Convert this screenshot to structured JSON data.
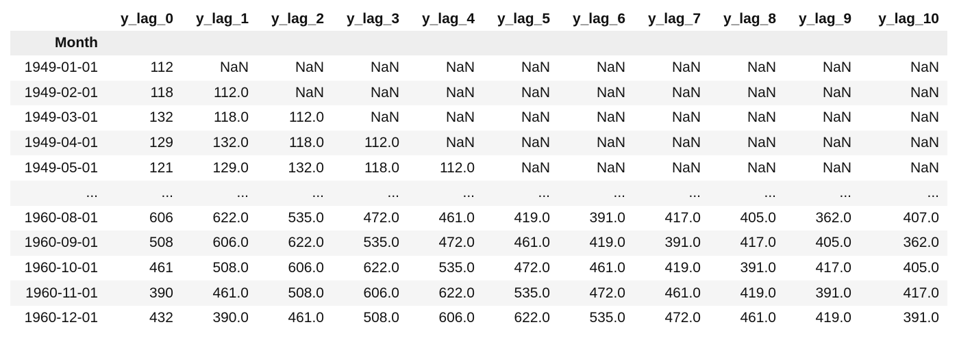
{
  "table": {
    "columns": [
      "y_lag_0",
      "y_lag_1",
      "y_lag_2",
      "y_lag_3",
      "y_lag_4",
      "y_lag_5",
      "y_lag_6",
      "y_lag_7",
      "y_lag_8",
      "y_lag_9",
      "y_lag_10"
    ],
    "index_name": "Month",
    "rows": [
      {
        "index": "1949-01-01",
        "cells": [
          "112",
          "NaN",
          "NaN",
          "NaN",
          "NaN",
          "NaN",
          "NaN",
          "NaN",
          "NaN",
          "NaN",
          "NaN"
        ]
      },
      {
        "index": "1949-02-01",
        "cells": [
          "118",
          "112.0",
          "NaN",
          "NaN",
          "NaN",
          "NaN",
          "NaN",
          "NaN",
          "NaN",
          "NaN",
          "NaN"
        ]
      },
      {
        "index": "1949-03-01",
        "cells": [
          "132",
          "118.0",
          "112.0",
          "NaN",
          "NaN",
          "NaN",
          "NaN",
          "NaN",
          "NaN",
          "NaN",
          "NaN"
        ]
      },
      {
        "index": "1949-04-01",
        "cells": [
          "129",
          "132.0",
          "118.0",
          "112.0",
          "NaN",
          "NaN",
          "NaN",
          "NaN",
          "NaN",
          "NaN",
          "NaN"
        ]
      },
      {
        "index": "1949-05-01",
        "cells": [
          "121",
          "129.0",
          "132.0",
          "118.0",
          "112.0",
          "NaN",
          "NaN",
          "NaN",
          "NaN",
          "NaN",
          "NaN"
        ]
      },
      {
        "index": "...",
        "cells": [
          "...",
          "...",
          "...",
          "...",
          "...",
          "...",
          "...",
          "...",
          "...",
          "...",
          "..."
        ]
      },
      {
        "index": "1960-08-01",
        "cells": [
          "606",
          "622.0",
          "535.0",
          "472.0",
          "461.0",
          "419.0",
          "391.0",
          "417.0",
          "405.0",
          "362.0",
          "407.0"
        ]
      },
      {
        "index": "1960-09-01",
        "cells": [
          "508",
          "606.0",
          "622.0",
          "535.0",
          "472.0",
          "461.0",
          "419.0",
          "391.0",
          "417.0",
          "405.0",
          "362.0"
        ]
      },
      {
        "index": "1960-10-01",
        "cells": [
          "461",
          "508.0",
          "606.0",
          "622.0",
          "535.0",
          "472.0",
          "461.0",
          "419.0",
          "391.0",
          "417.0",
          "405.0"
        ]
      },
      {
        "index": "1960-11-01",
        "cells": [
          "390",
          "461.0",
          "508.0",
          "606.0",
          "622.0",
          "535.0",
          "472.0",
          "461.0",
          "419.0",
          "391.0",
          "417.0"
        ]
      },
      {
        "index": "1960-12-01",
        "cells": [
          "432",
          "390.0",
          "461.0",
          "508.0",
          "606.0",
          "622.0",
          "535.0",
          "472.0",
          "461.0",
          "419.0",
          "391.0"
        ]
      }
    ]
  }
}
